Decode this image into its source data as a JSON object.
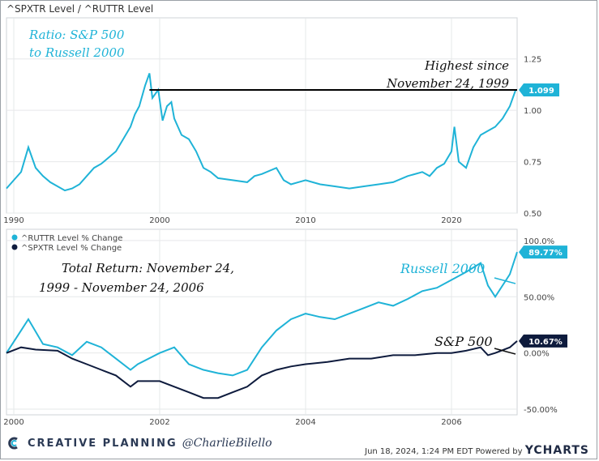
{
  "header": {
    "title": "^SPXTR Level / ^RUTTR Level"
  },
  "chart_data": [
    {
      "type": "line",
      "title": "^SPXTR Level / ^RUTTR Level",
      "annotation_title": [
        "Ratio: S&P 500",
        "to Russell 2000"
      ],
      "annotation_note": [
        "Highest since",
        "November 24, 1999"
      ],
      "last_value_label": "1.099",
      "xlabel": "",
      "ylabel": "",
      "x_ticks": [
        "1990",
        "2000",
        "2010",
        "2020"
      ],
      "y_ticks": [
        "0.50",
        "0.75",
        "1.00",
        "1.25"
      ],
      "ylim": [
        0.5,
        1.45
      ],
      "xlim": [
        1989.5,
        2024.5
      ],
      "series": [
        {
          "color": "#1fb3d7",
          "x": [
            1989.5,
            1990.0,
            1990.5,
            1991.0,
            1991.5,
            1992.0,
            1992.5,
            1993.0,
            1993.5,
            1994.0,
            1994.5,
            1995.0,
            1995.5,
            1996.0,
            1996.5,
            1997.0,
            1997.5,
            1998.0,
            1998.3,
            1998.6,
            1999.0,
            1999.3,
            1999.5,
            1999.9,
            2000.2,
            2000.5,
            2000.8,
            2001.0,
            2001.5,
            2002.0,
            2002.5,
            2003.0,
            2003.5,
            2004.0,
            2005.0,
            2006.0,
            2006.5,
            2007.0,
            2008.0,
            2008.5,
            2009.0,
            2009.5,
            2010.0,
            2011.0,
            2012.0,
            2013.0,
            2014.0,
            2015.0,
            2016.0,
            2017.0,
            2018.0,
            2018.5,
            2019.0,
            2019.5,
            2020.0,
            2020.2,
            2020.5,
            2021.0,
            2021.5,
            2022.0,
            2022.5,
            2023.0,
            2023.5,
            2024.0,
            2024.4
          ],
          "values": [
            0.62,
            0.66,
            0.7,
            0.82,
            0.72,
            0.68,
            0.65,
            0.63,
            0.61,
            0.62,
            0.64,
            0.68,
            0.72,
            0.74,
            0.77,
            0.8,
            0.86,
            0.92,
            0.98,
            1.02,
            1.12,
            1.18,
            1.06,
            1.1,
            0.95,
            1.02,
            1.04,
            0.96,
            0.88,
            0.86,
            0.8,
            0.72,
            0.7,
            0.67,
            0.66,
            0.65,
            0.68,
            0.69,
            0.72,
            0.66,
            0.64,
            0.65,
            0.66,
            0.64,
            0.63,
            0.62,
            0.63,
            0.64,
            0.65,
            0.68,
            0.7,
            0.68,
            0.72,
            0.74,
            0.8,
            0.92,
            0.75,
            0.72,
            0.82,
            0.88,
            0.9,
            0.92,
            0.96,
            1.02,
            1.099
          ]
        }
      ]
    },
    {
      "type": "line",
      "annotation_title": [
        "Total Return: November 24,",
        "1999 - November 24, 2006"
      ],
      "xlabel": "",
      "ylabel": "",
      "x_ticks": [
        "2000",
        "2002",
        "2004",
        "2006"
      ],
      "y_ticks": [
        "-50.00%",
        "0.00%",
        "50.00%",
        "100.0%"
      ],
      "ylim": [
        -55,
        110
      ],
      "xlim": [
        1999.9,
        2006.9
      ],
      "legend": {
        "placement": "top-left"
      },
      "series": [
        {
          "name": "^RUTTR Level % Change",
          "label": "Russell 2000",
          "last_value_label": "89.77%",
          "color": "#1fb3d7",
          "x": [
            1999.9,
            2000.1,
            2000.2,
            2000.4,
            2000.6,
            2000.8,
            2001.0,
            2001.2,
            2001.4,
            2001.6,
            2001.7,
            2002.0,
            2002.2,
            2002.4,
            2002.6,
            2002.8,
            2003.0,
            2003.2,
            2003.4,
            2003.6,
            2003.8,
            2004.0,
            2004.2,
            2004.4,
            2004.6,
            2004.8,
            2005.0,
            2005.2,
            2005.4,
            2005.6,
            2005.8,
            2006.0,
            2006.2,
            2006.4,
            2006.5,
            2006.6,
            2006.8,
            2006.9
          ],
          "values": [
            0,
            20,
            30,
            8,
            5,
            -2,
            10,
            5,
            -5,
            -15,
            -10,
            0,
            5,
            -10,
            -15,
            -18,
            -20,
            -15,
            5,
            20,
            30,
            35,
            32,
            30,
            35,
            40,
            45,
            42,
            48,
            55,
            58,
            65,
            72,
            80,
            60,
            50,
            70,
            89.77
          ]
        },
        {
          "name": "^SPXTR Level % Change",
          "label": "S&P 500",
          "last_value_label": "10.67%",
          "color": "#0e1b3d",
          "x": [
            1999.9,
            2000.1,
            2000.3,
            2000.6,
            2000.8,
            2001.0,
            2001.2,
            2001.4,
            2001.6,
            2001.7,
            2002.0,
            2002.2,
            2002.4,
            2002.6,
            2002.8,
            2003.0,
            2003.2,
            2003.4,
            2003.6,
            2003.8,
            2004.0,
            2004.3,
            2004.6,
            2004.9,
            2005.2,
            2005.5,
            2005.8,
            2006.0,
            2006.2,
            2006.4,
            2006.5,
            2006.6,
            2006.8,
            2006.9
          ],
          "values": [
            0,
            5,
            3,
            2,
            -5,
            -10,
            -15,
            -20,
            -30,
            -25,
            -25,
            -30,
            -35,
            -40,
            -40,
            -35,
            -30,
            -20,
            -15,
            -12,
            -10,
            -8,
            -5,
            -5,
            -2,
            -2,
            0,
            0,
            2,
            5,
            -2,
            0,
            5,
            10.67
          ]
        }
      ]
    }
  ],
  "footer": {
    "brand": "CREATIVE PLANNING",
    "handle": "@CharlieBilello",
    "timestamp": "Jun 18, 2024, 1:24 PM EDT Powered by",
    "logo": "YCHARTS"
  }
}
